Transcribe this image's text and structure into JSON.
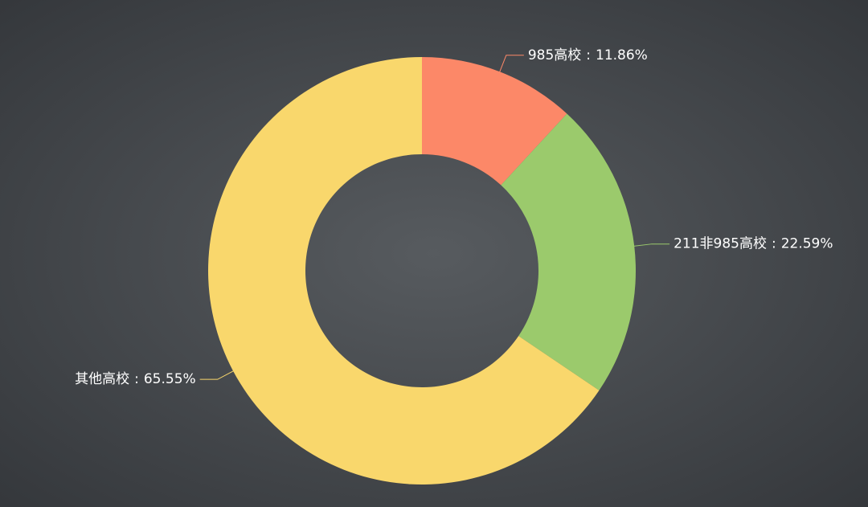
{
  "chart_data": {
    "type": "donut",
    "categories": [
      "985高校",
      "211非985高校",
      "其他高校"
    ],
    "values": [
      11.86,
      22.59,
      65.55
    ],
    "value_labels": [
      "11.86%",
      "22.59%",
      "65.55%"
    ],
    "label_separator": ":",
    "colors": [
      "#fc8868",
      "#9bca6c",
      "#f9d76c"
    ]
  }
}
